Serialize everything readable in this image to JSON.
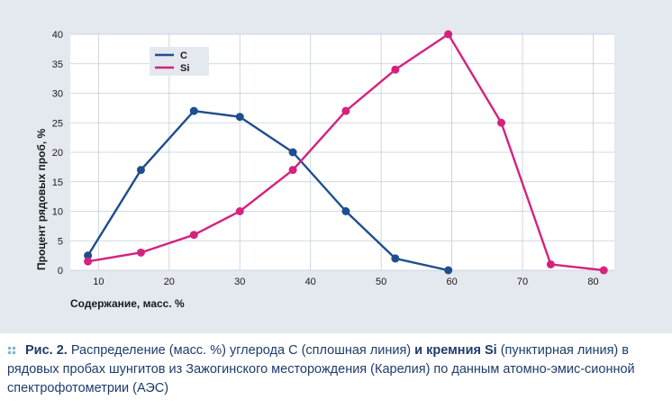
{
  "chart_data": {
    "type": "line",
    "x_ticks": [
      10,
      20,
      30,
      40,
      50,
      60,
      70,
      80
    ],
    "y_ticks": [
      0,
      5,
      10,
      15,
      20,
      25,
      30,
      35,
      40
    ],
    "xlim": [
      6,
      83
    ],
    "ylim": [
      0,
      40
    ],
    "xlabel": "Содержание, масс. %",
    "ylabel": "Процент рядовых проб, %",
    "grid": true,
    "legend_position": "top-left",
    "series": [
      {
        "name": "C",
        "color": "#1f4e8c",
        "x": [
          8.5,
          16,
          23.5,
          30,
          37.5,
          45,
          52,
          59.5
        ],
        "y": [
          2.5,
          17,
          27,
          26,
          20,
          10,
          2,
          0
        ]
      },
      {
        "name": "Si",
        "color": "#d4237f",
        "x": [
          8.5,
          16,
          23.5,
          30,
          37.5,
          45,
          52,
          59.5,
          67,
          74,
          81.5
        ],
        "y": [
          1.5,
          3,
          6,
          10,
          17,
          27,
          34,
          40,
          25,
          1,
          0
        ]
      }
    ]
  },
  "caption": {
    "fig": "Рис. 2.",
    "t1": " Распределение (масс. %) углерода ",
    "t2": "С",
    "t3": " (сплошная линия) ",
    "t4": "и кремния Si",
    "t5": " (пунктирная линия) ",
    "t6": "в рядовых пробах шунгитов из Зажогинского месторождения (Карелия) по данным атомно-эмис-сионной спектрофотометрии (АЭС)"
  }
}
